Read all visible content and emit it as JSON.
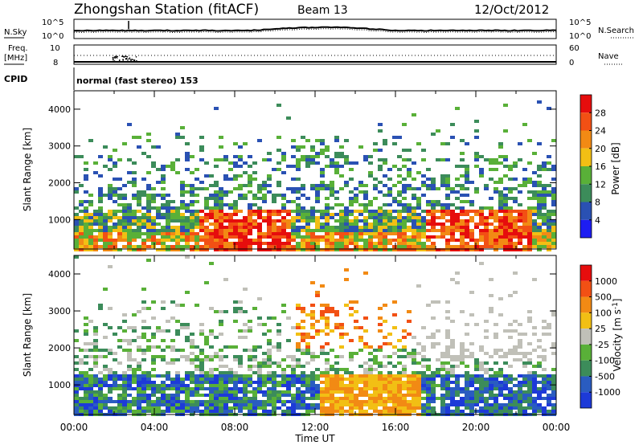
{
  "header": {
    "title": "Zhongshan Station (fitACF)",
    "beam": "Beam 13",
    "date": "12/Oct/2012"
  },
  "strips": {
    "nsky_label": "N.Sky",
    "nsky_ticks": [
      "10^5",
      "10^0"
    ],
    "nsearch_label": "N.Search",
    "nsearch_ticks": [
      "10^5",
      "10^0"
    ],
    "freq_label_line1": "Freq.",
    "freq_label_line2": "[MHz]",
    "freq_ticks": [
      "10",
      "8"
    ],
    "nave_label": "Nave",
    "nave_ticks": [
      "60",
      "0"
    ],
    "cpid_label": "CPID",
    "cpid_text": "normal (fast stereo)  153"
  },
  "colors": {
    "power_scale": [
      "#1d1df2",
      "#2a51b3",
      "#3c8c5a",
      "#59b038",
      "#f2bf14",
      "#f28a14",
      "#f25014",
      "#e60d0d"
    ],
    "velocity_scale": [
      "#1d3ad8",
      "#2a5cc0",
      "#3c8c5a",
      "#59b038",
      "#c0c0b8",
      "#f2bf14",
      "#f28a14",
      "#f25014",
      "#e60d0d"
    ]
  },
  "chart_data": [
    {
      "type": "heatmap",
      "name": "power",
      "title": "",
      "xlabel": "Time UT",
      "ylabel": "Slant Range [km]",
      "xlim": [
        "00:00",
        "00:00"
      ],
      "x_ticks": [
        "00:00",
        "04:00",
        "08:00",
        "12:00",
        "16:00",
        "20:00",
        "00:00"
      ],
      "ylim": [
        200,
        4500
      ],
      "y_ticks": [
        1000,
        2000,
        3000,
        4000
      ],
      "colorbar": {
        "label": "Power [dB]",
        "ticks": [
          4,
          8,
          12,
          16,
          20,
          24,
          28
        ]
      }
    },
    {
      "type": "heatmap",
      "name": "velocity",
      "title": "",
      "xlabel": "Time UT",
      "ylabel": "Slant Range [km]",
      "xlim": [
        "00:00",
        "00:00"
      ],
      "x_ticks": [
        "00:00",
        "04:00",
        "08:00",
        "12:00",
        "16:00",
        "20:00",
        "00:00"
      ],
      "ylim": [
        200,
        4500
      ],
      "y_ticks": [
        1000,
        2000,
        3000,
        4000
      ],
      "colorbar": {
        "label": "Velocity [m s^-1]",
        "ticks": [
          1000,
          500,
          100,
          25,
          -25,
          -100,
          -500,
          -1000
        ]
      }
    }
  ]
}
